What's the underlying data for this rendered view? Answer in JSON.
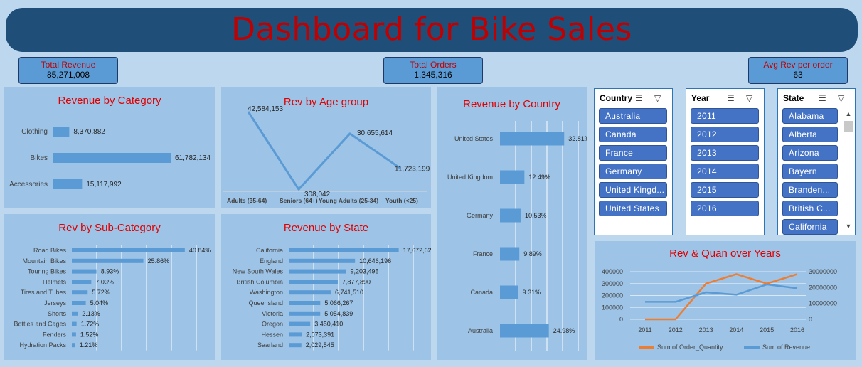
{
  "title": "Dashboard for Bike Sales",
  "kpis": {
    "revenue": {
      "label": "Total Revenue",
      "value": "85,271,008"
    },
    "orders": {
      "label": "Total Orders",
      "value": "1,345,316"
    },
    "avg": {
      "label": "Avg Rev per order",
      "value": "63"
    }
  },
  "slicers": {
    "country": {
      "header": "Country",
      "items": [
        "Australia",
        "Canada",
        "France",
        "Germany",
        "United Kingd...",
        "United States"
      ]
    },
    "year": {
      "header": "Year",
      "items": [
        "2011",
        "2012",
        "2013",
        "2014",
        "2015",
        "2016"
      ]
    },
    "state": {
      "header": "State",
      "items": [
        "Alabama",
        "Alberta",
        "Arizona",
        "Bayern",
        "Branden...",
        "British C...",
        "California"
      ]
    }
  },
  "icons": {
    "multiselect": "multi-select-icon",
    "clear_filter": "clear-filter-icon",
    "scroll_up": "scroll-up-icon",
    "scroll_down": "scroll-down-icon"
  },
  "colors": {
    "background": "#BDD7EE",
    "banner": "#1F4E79",
    "title": "#C00000",
    "panel": "#9DC3E6",
    "bar": "#5B9BD5",
    "orange": "#ED7D31",
    "kpi": "#5B9BD5",
    "slicer_item": "#4472C4"
  },
  "chart_data": [
    {
      "id": "category",
      "type": "bar",
      "orientation": "horizontal",
      "title": "Revenue by Category",
      "categories": [
        "Clothing",
        "Bikes",
        "Accessories"
      ],
      "values": [
        8370882,
        61782134,
        15117992
      ],
      "labels": [
        "8,370,882",
        "61,782,134",
        "15,117,992"
      ],
      "grid": false
    },
    {
      "id": "age",
      "type": "line",
      "title": "Rev by Age group",
      "categories": [
        "Adults (35-64)",
        "Seniors (64+)",
        "Young Adults (25-34)",
        "Youth (<25)"
      ],
      "values": [
        42584153,
        308042,
        30655614,
        11723199
      ],
      "labels": [
        "42,584,153",
        "308,042",
        "30,655,614",
        "11,723,199"
      ],
      "grid": false
    },
    {
      "id": "subcat",
      "type": "bar",
      "orientation": "horizontal",
      "title": "Rev by Sub-Category",
      "categories": [
        "Road Bikes",
        "Mountain Bikes",
        "Touring Bikes",
        "Helmets",
        "Tires and Tubes",
        "Jerseys",
        "Shorts",
        "Bottles and Cages",
        "Fenders",
        "Hydration Packs"
      ],
      "values": [
        40.84,
        25.86,
        8.93,
        7.03,
        5.72,
        5.04,
        2.13,
        1.72,
        1.52,
        1.21
      ],
      "labels": [
        "40.84%",
        "25.86%",
        "8.93%",
        "7.03%",
        "5.72%",
        "5.04%",
        "2.13%",
        "1.72%",
        "1.52%",
        "1.21%"
      ],
      "xlim": [
        0,
        45
      ],
      "grid": true
    },
    {
      "id": "state",
      "type": "bar",
      "orientation": "horizontal",
      "title": "Revenue by State",
      "categories": [
        "California",
        "England",
        "New South Wales",
        "British Columbia",
        "Washington",
        "Queensland",
        "Victoria",
        "Oregon",
        "Hessen",
        "Saarland"
      ],
      "values": [
        17672620,
        10646196,
        9203495,
        7877890,
        6741510,
        5066267,
        5054839,
        3450410,
        2073391,
        2029545
      ],
      "labels": [
        "17,672,620",
        "10,646,196",
        "9,203,495",
        "7,877,890",
        "6,741,510",
        "5,066,267",
        "5,054,839",
        "3,450,410",
        "2,073,391",
        "2,029,545"
      ],
      "xlim": [
        0,
        20000000
      ],
      "grid": true
    },
    {
      "id": "country",
      "type": "bar",
      "orientation": "horizontal",
      "title": "Revenue by Country",
      "categories": [
        "United States",
        "United Kingdom",
        "Germany",
        "France",
        "Canada",
        "Australia"
      ],
      "values": [
        32.81,
        12.49,
        10.53,
        9.89,
        9.31,
        24.98
      ],
      "labels": [
        "32.81%",
        "12.49%",
        "10.53%",
        "9.89%",
        "9.31%",
        "24.98%"
      ],
      "xlim": [
        0,
        40
      ],
      "grid": true
    },
    {
      "id": "years",
      "type": "line",
      "title": "Rev & Quan over Years",
      "x": [
        "2011",
        "2012",
        "2013",
        "2014",
        "2015",
        "2016"
      ],
      "series": [
        {
          "name": "Sum of Order_Quantity",
          "axis": "left",
          "color": "#ED7D31",
          "values": [
            0,
            0,
            300000,
            380000,
            300000,
            380000
          ]
        },
        {
          "name": "Sum of Revenue",
          "axis": "right",
          "color": "#5B9BD5",
          "values": [
            11000000,
            11000000,
            17000000,
            15500000,
            22000000,
            19500000
          ]
        }
      ],
      "y_left_ticks": [
        "400000",
        "300000",
        "200000",
        "100000",
        "0"
      ],
      "y_right_ticks": [
        "30000000",
        "20000000",
        "10000000",
        "0"
      ],
      "ylim_left": [
        0,
        400000
      ],
      "ylim_right": [
        0,
        30000000
      ],
      "legend": "bottom",
      "grid": true
    }
  ]
}
